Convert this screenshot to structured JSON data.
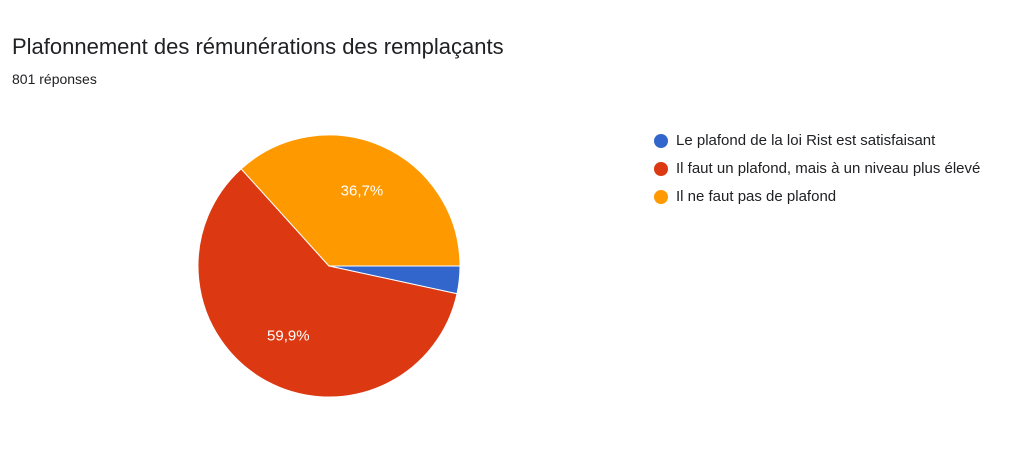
{
  "header": {
    "title": "Plafonnement des rémunérations des remplaçants",
    "subtitle": "801 réponses"
  },
  "chart_data": {
    "type": "pie",
    "title": "Plafonnement des rémunérations des remplaçants",
    "subtitle": "801 réponses",
    "legend_position": "right",
    "slices": [
      {
        "label": "Le plafond de la loi Rist est satisfaisant",
        "value": 3.4,
        "display": "",
        "color": "#3366cc"
      },
      {
        "label": "Il faut un plafond, mais à un niveau plus élevé",
        "value": 59.9,
        "display": "59,9%",
        "color": "#dc3912"
      },
      {
        "label": "Il ne faut pas de plafond",
        "value": 36.7,
        "display": "36,7%",
        "color": "#ff9900"
      }
    ]
  }
}
